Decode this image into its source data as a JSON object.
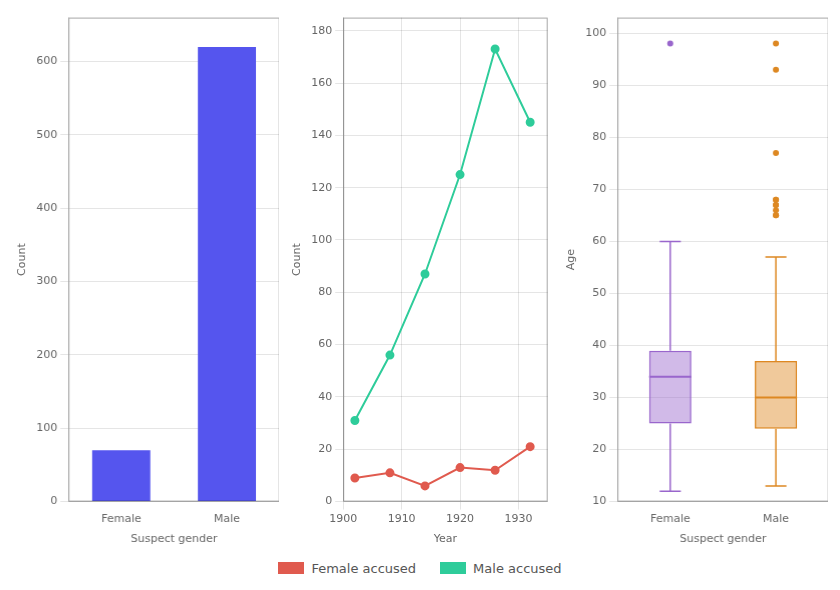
{
  "chart_data": [
    {
      "type": "bar",
      "xlabel": "Suspect gender",
      "ylabel": "Count",
      "categories": [
        "Female",
        "Male"
      ],
      "values": [
        70,
        620
      ],
      "color": "#5555ee",
      "ylim": [
        0,
        660
      ],
      "yticks": [
        0,
        100,
        200,
        300,
        400,
        500,
        600
      ],
      "grid": true
    },
    {
      "type": "line",
      "xlabel": "Year",
      "ylabel": "Count",
      "x": [
        1902,
        1908,
        1914,
        1920,
        1926,
        1932
      ],
      "series": [
        {
          "name": "Male accused",
          "color": "#2ecc9a",
          "values": [
            31,
            56,
            87,
            125,
            173,
            145
          ]
        },
        {
          "name": "Female accused",
          "color": "#e05a4e",
          "values": [
            9,
            11,
            6,
            13,
            12,
            21
          ]
        }
      ],
      "xlim": [
        1900,
        1935
      ],
      "xticks": [
        1900,
        1910,
        1920,
        1930
      ],
      "ylim": [
        0,
        185
      ],
      "yticks": [
        0,
        20,
        40,
        60,
        80,
        100,
        120,
        140,
        160,
        180
      ],
      "grid": true,
      "marker": "circle",
      "legend": "bottom"
    },
    {
      "type": "box",
      "xlabel": "Suspect gender",
      "ylabel": "Age",
      "categories": [
        "Female",
        "Male"
      ],
      "boxes": [
        {
          "color": "#9966cc",
          "q1": 25,
          "median": 34,
          "q3": 39,
          "whislo": 12,
          "whishi": 60,
          "fliers": [
            98
          ]
        },
        {
          "color": "#dd8822",
          "q1": 24,
          "median": 30,
          "q3": 37,
          "whislo": 13,
          "whishi": 57,
          "fliers": [
            65,
            65,
            66,
            67,
            67,
            68,
            68,
            77,
            93,
            98
          ]
        }
      ],
      "ylim": [
        10,
        103
      ],
      "yticks": [
        10,
        20,
        30,
        40,
        50,
        60,
        70,
        80,
        90,
        100
      ],
      "grid": true
    }
  ]
}
